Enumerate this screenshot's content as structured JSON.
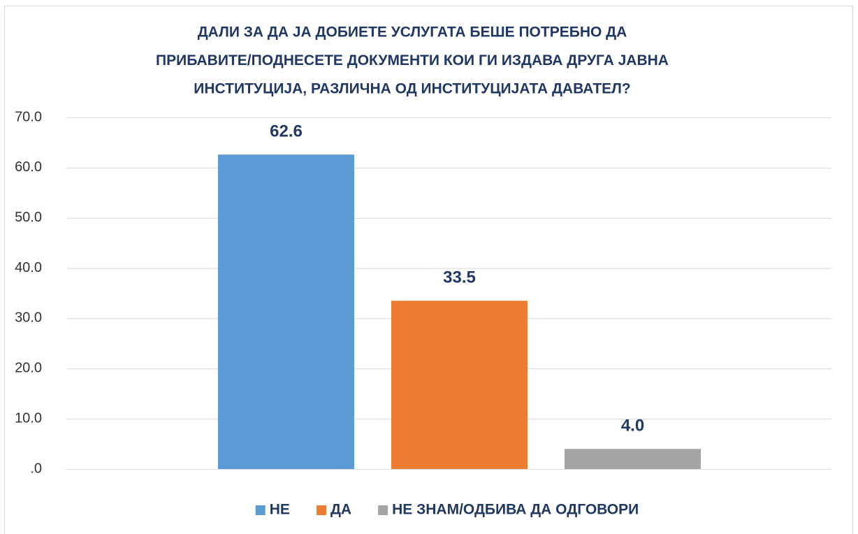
{
  "chart_data": {
    "type": "bar",
    "title": [
      "ДАЛИ ЗА ДА ЈА ДОБИЕТЕ УСЛУГАТА БЕШЕ ПОТРЕБНО ДА",
      "ПРИБАВИТЕ/ПОДНЕСЕТЕ ДОКУМЕНТИ КОИ ГИ ИЗДАВА ДРУГА ЈАВНА",
      "ИНСТИТУЦИЈА, РАЗЛИЧНА ОД ИНСТИТУЦИЈАТА ДАВАТЕЛ?"
    ],
    "categories": [
      null
    ],
    "series": [
      {
        "name": "НЕ",
        "color": "#5b9bd5",
        "values": [
          62.6
        ],
        "value_labels": [
          "62.6"
        ]
      },
      {
        "name": "ДА",
        "color": "#ed7d31",
        "values": [
          33.5
        ],
        "value_labels": [
          "33.5"
        ]
      },
      {
        "name": "НЕ ЗНАМ/ОДБИВА ДА ОДГОВОРИ",
        "color": "#a5a5a5",
        "values": [
          4.0
        ],
        "value_labels": [
          "4.0"
        ]
      }
    ],
    "ylim": [
      0,
      70
    ],
    "yticks": [
      {
        "value": 0,
        "label": ".0"
      },
      {
        "value": 10,
        "label": "10.0"
      },
      {
        "value": 20,
        "label": "20.0"
      },
      {
        "value": 30,
        "label": "30.0"
      },
      {
        "value": 40,
        "label": "40.0"
      },
      {
        "value": 50,
        "label": "50.0"
      },
      {
        "value": 60,
        "label": "60.0"
      },
      {
        "value": 70,
        "label": "70.0"
      }
    ],
    "grid": true,
    "legend": "bottom"
  }
}
